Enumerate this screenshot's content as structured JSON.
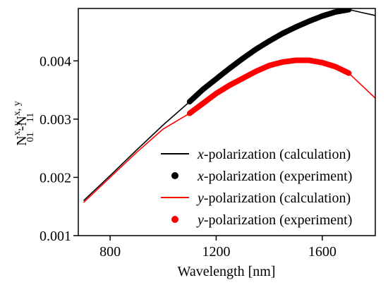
{
  "chart_data": {
    "type": "line",
    "xlabel": "Wavelength [nm]",
    "ylabel_parts": {
      "n1": "N",
      "sup1": "x, y",
      "sub1": "01",
      "dash": "-N",
      "sup2": "x, y",
      "sub2": "11"
    },
    "xlim": [
      680,
      1800
    ],
    "ylim": [
      0.001,
      0.0049
    ],
    "xticks": [
      800,
      1200,
      1600
    ],
    "xtick_labels": [
      "800",
      "1200",
      "1600"
    ],
    "yticks": [
      0.001,
      0.002,
      0.003,
      0.004
    ],
    "ytick_labels": [
      "0.001",
      "0.002",
      "0.003",
      "0.004"
    ],
    "legend_position": "bottom-right",
    "series": [
      {
        "name_italic": "x",
        "name_rest": "-polarization (calculation)",
        "kind": "line",
        "color": "#000000",
        "x": [
          700,
          800,
          900,
          1000,
          1100,
          1200,
          1300,
          1400,
          1500,
          1600,
          1700,
          1800
        ],
        "y": [
          0.0016,
          0.00203,
          0.00247,
          0.0029,
          0.0033,
          0.00369,
          0.00404,
          0.00434,
          0.00458,
          0.00477,
          0.00488,
          0.00478
        ]
      },
      {
        "name_italic": "x",
        "name_rest": "-polarization (experiment)",
        "kind": "points",
        "color": "#000000",
        "x": [
          1100,
          1150,
          1200,
          1250,
          1300,
          1350,
          1400,
          1450,
          1500,
          1550,
          1600,
          1650,
          1700
        ],
        "y": [
          0.0033,
          0.00351,
          0.00369,
          0.00387,
          0.00404,
          0.0042,
          0.00434,
          0.00447,
          0.00458,
          0.00468,
          0.00477,
          0.00484,
          0.00488
        ]
      },
      {
        "name_italic": "y",
        "name_rest": "-polarization (calculation)",
        "kind": "line",
        "color": "#ff0000",
        "x": [
          700,
          800,
          900,
          1000,
          1100,
          1200,
          1300,
          1400,
          1500,
          1550,
          1600,
          1700,
          1800
        ],
        "y": [
          0.00157,
          0.002,
          0.00243,
          0.00283,
          0.0031,
          0.00344,
          0.0037,
          0.00392,
          0.00401,
          0.00401,
          0.00397,
          0.00379,
          0.00336
        ]
      },
      {
        "name_italic": "y",
        "name_rest": "-polarization (experiment)",
        "kind": "points",
        "color": "#ff0000",
        "x": [
          1100,
          1150,
          1200,
          1250,
          1300,
          1350,
          1400,
          1450,
          1500,
          1550,
          1600,
          1650,
          1700
        ],
        "y": [
          0.0031,
          0.00327,
          0.00344,
          0.00358,
          0.0037,
          0.00382,
          0.00392,
          0.00398,
          0.00401,
          0.00401,
          0.00397,
          0.0039,
          0.00379
        ]
      }
    ]
  }
}
